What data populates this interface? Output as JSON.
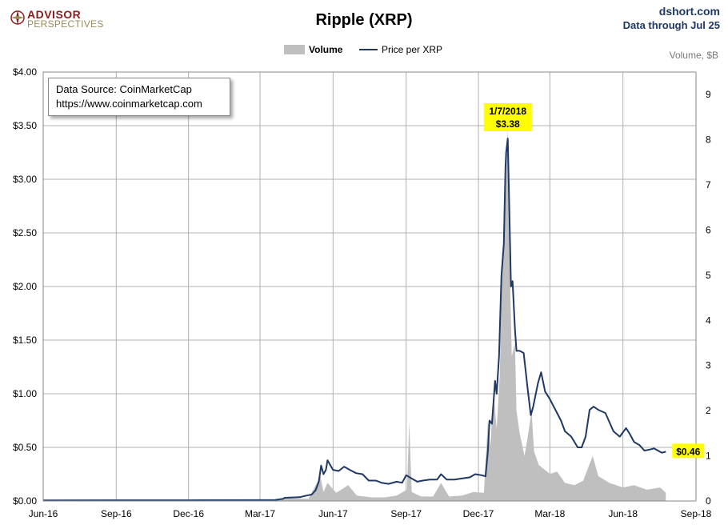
{
  "logo": {
    "line1": "ADVISOR",
    "line2": "PERSPECTIVES"
  },
  "header": {
    "site": "dshort.com",
    "data_through": "Data through Jul 25"
  },
  "source_box": {
    "line1": "Data Source: CoinMarketCap",
    "line2": "https://www.coinmarketcap.com"
  },
  "colors": {
    "price": "#1f3864",
    "volume": "#bfbfbf",
    "grid": "#b0b0b0",
    "callout": "#ffff00"
  },
  "chart_data": {
    "type": "line",
    "title": "Ripple (XRP)",
    "y_right_label": "Volume, $B",
    "legend": {
      "placement": "top-center",
      "entries": [
        "Volume",
        "Price per XRP"
      ]
    },
    "x_ticks": [
      "Jun-16",
      "Sep-16",
      "Dec-16",
      "Mar-17",
      "Jun-17",
      "Sep-17",
      "Dec-17",
      "Mar-18",
      "Jun-18",
      "Sep-18"
    ],
    "x_range": [
      "2016-06-01",
      "2018-09-01"
    ],
    "y_ticks_left": [
      "$0.00",
      "$0.50",
      "$1.00",
      "$1.50",
      "$2.00",
      "$2.50",
      "$3.00",
      "$3.50",
      "$4.00"
    ],
    "ylim_left": [
      0,
      4
    ],
    "y_ticks_right": [
      "0",
      "1",
      "2",
      "3",
      "4",
      "5",
      "6",
      "7",
      "8",
      "9"
    ],
    "ylim_right": [
      0,
      9.5
    ],
    "grid": true,
    "annotations": {
      "peak_date": "1/7/2018",
      "peak_price": "$3.38",
      "peak_x": "2018-01-07",
      "peak_y": 3.38,
      "last_price": "$0.46",
      "last_x": "2018-07-25",
      "last_y": 0.46
    },
    "series": [
      {
        "name": "Price per XRP",
        "points": [
          [
            "2016-06-01",
            0.006
          ],
          [
            "2016-09-01",
            0.007
          ],
          [
            "2016-12-01",
            0.007
          ],
          [
            "2017-03-01",
            0.008
          ],
          [
            "2017-03-20",
            0.009
          ],
          [
            "2017-03-30",
            0.02
          ],
          [
            "2017-04-01",
            0.03
          ],
          [
            "2017-04-20",
            0.035
          ],
          [
            "2017-04-28",
            0.05
          ],
          [
            "2017-05-05",
            0.06
          ],
          [
            "2017-05-10",
            0.1
          ],
          [
            "2017-05-14",
            0.18
          ],
          [
            "2017-05-17",
            0.33
          ],
          [
            "2017-05-20",
            0.25
          ],
          [
            "2017-05-23",
            0.29
          ],
          [
            "2017-05-25",
            0.38
          ],
          [
            "2017-05-28",
            0.34
          ],
          [
            "2017-06-01",
            0.29
          ],
          [
            "2017-06-08",
            0.28
          ],
          [
            "2017-06-15",
            0.32
          ],
          [
            "2017-06-22",
            0.29
          ],
          [
            "2017-06-30",
            0.26
          ],
          [
            "2017-07-08",
            0.25
          ],
          [
            "2017-07-16",
            0.19
          ],
          [
            "2017-07-25",
            0.19
          ],
          [
            "2017-08-01",
            0.17
          ],
          [
            "2017-08-10",
            0.16
          ],
          [
            "2017-08-20",
            0.18
          ],
          [
            "2017-08-27",
            0.17
          ],
          [
            "2017-09-01",
            0.24
          ],
          [
            "2017-09-08",
            0.21
          ],
          [
            "2017-09-15",
            0.18
          ],
          [
            "2017-09-22",
            0.19
          ],
          [
            "2017-10-01",
            0.2
          ],
          [
            "2017-10-10",
            0.2
          ],
          [
            "2017-10-15",
            0.25
          ],
          [
            "2017-10-22",
            0.2
          ],
          [
            "2017-11-01",
            0.2
          ],
          [
            "2017-11-10",
            0.21
          ],
          [
            "2017-11-20",
            0.22
          ],
          [
            "2017-11-27",
            0.25
          ],
          [
            "2017-12-05",
            0.24
          ],
          [
            "2017-12-10",
            0.23
          ],
          [
            "2017-12-13",
            0.47
          ],
          [
            "2017-12-15",
            0.75
          ],
          [
            "2017-12-18",
            0.72
          ],
          [
            "2017-12-20",
            0.92
          ],
          [
            "2017-12-22",
            1.12
          ],
          [
            "2017-12-24",
            1.0
          ],
          [
            "2017-12-27",
            1.35
          ],
          [
            "2017-12-30",
            2.1
          ],
          [
            "2018-01-02",
            2.4
          ],
          [
            "2018-01-04",
            3.1
          ],
          [
            "2018-01-05",
            3.25
          ],
          [
            "2018-01-07",
            3.38
          ],
          [
            "2018-01-09",
            2.7
          ],
          [
            "2018-01-11",
            2.0
          ],
          [
            "2018-01-13",
            2.05
          ],
          [
            "2018-01-16",
            1.6
          ],
          [
            "2018-01-18",
            1.4
          ],
          [
            "2018-01-22",
            1.4
          ],
          [
            "2018-01-27",
            1.38
          ],
          [
            "2018-02-01",
            1.05
          ],
          [
            "2018-02-05",
            0.8
          ],
          [
            "2018-02-08",
            0.88
          ],
          [
            "2018-02-14",
            1.1
          ],
          [
            "2018-02-18",
            1.2
          ],
          [
            "2018-02-23",
            1.02
          ],
          [
            "2018-03-01",
            0.95
          ],
          [
            "2018-03-08",
            0.85
          ],
          [
            "2018-03-15",
            0.75
          ],
          [
            "2018-03-20",
            0.65
          ],
          [
            "2018-03-28",
            0.6
          ],
          [
            "2018-04-05",
            0.5
          ],
          [
            "2018-04-10",
            0.5
          ],
          [
            "2018-04-15",
            0.6
          ],
          [
            "2018-04-20",
            0.85
          ],
          [
            "2018-04-25",
            0.88
          ],
          [
            "2018-05-01",
            0.85
          ],
          [
            "2018-05-10",
            0.82
          ],
          [
            "2018-05-20",
            0.65
          ],
          [
            "2018-05-28",
            0.6
          ],
          [
            "2018-06-05",
            0.68
          ],
          [
            "2018-06-10",
            0.62
          ],
          [
            "2018-06-15",
            0.55
          ],
          [
            "2018-06-22",
            0.52
          ],
          [
            "2018-06-28",
            0.47
          ],
          [
            "2018-07-05",
            0.48
          ],
          [
            "2018-07-10",
            0.49
          ],
          [
            "2018-07-15",
            0.47
          ],
          [
            "2018-07-20",
            0.45
          ],
          [
            "2018-07-25",
            0.46
          ]
        ]
      },
      {
        "name": "Volume",
        "points": [
          [
            "2016-06-01",
            0.0
          ],
          [
            "2017-03-15",
            0.0
          ],
          [
            "2017-04-05",
            0.06
          ],
          [
            "2017-05-01",
            0.05
          ],
          [
            "2017-05-16",
            0.55
          ],
          [
            "2017-05-20",
            0.2
          ],
          [
            "2017-05-25",
            0.4
          ],
          [
            "2017-06-05",
            0.18
          ],
          [
            "2017-06-20",
            0.35
          ],
          [
            "2017-07-01",
            0.12
          ],
          [
            "2017-07-20",
            0.08
          ],
          [
            "2017-08-05",
            0.08
          ],
          [
            "2017-08-20",
            0.12
          ],
          [
            "2017-09-02",
            0.25
          ],
          [
            "2017-09-05",
            1.75
          ],
          [
            "2017-09-08",
            0.2
          ],
          [
            "2017-09-20",
            0.1
          ],
          [
            "2017-10-05",
            0.1
          ],
          [
            "2017-10-15",
            0.4
          ],
          [
            "2017-10-25",
            0.1
          ],
          [
            "2017-11-10",
            0.12
          ],
          [
            "2017-11-25",
            0.2
          ],
          [
            "2017-12-08",
            0.18
          ],
          [
            "2017-12-13",
            1.8
          ],
          [
            "2017-12-16",
            1.2
          ],
          [
            "2017-12-20",
            2.4
          ],
          [
            "2017-12-24",
            1.6
          ],
          [
            "2017-12-28",
            2.8
          ],
          [
            "2017-12-31",
            5.5
          ],
          [
            "2018-01-03",
            6.0
          ],
          [
            "2018-01-05",
            7.2
          ],
          [
            "2018-01-07",
            8.3
          ],
          [
            "2018-01-09",
            5.6
          ],
          [
            "2018-01-12",
            3.2
          ],
          [
            "2018-01-16",
            3.5
          ],
          [
            "2018-01-18",
            2.0
          ],
          [
            "2018-01-22",
            1.5
          ],
          [
            "2018-01-28",
            1.0
          ],
          [
            "2018-02-01",
            1.4
          ],
          [
            "2018-02-06",
            2.0
          ],
          [
            "2018-02-09",
            1.1
          ],
          [
            "2018-02-15",
            0.8
          ],
          [
            "2018-03-01",
            0.6
          ],
          [
            "2018-03-10",
            0.65
          ],
          [
            "2018-03-20",
            0.4
          ],
          [
            "2018-04-01",
            0.35
          ],
          [
            "2018-04-12",
            0.45
          ],
          [
            "2018-04-24",
            1.0
          ],
          [
            "2018-05-01",
            0.55
          ],
          [
            "2018-05-15",
            0.4
          ],
          [
            "2018-06-01",
            0.3
          ],
          [
            "2018-06-15",
            0.35
          ],
          [
            "2018-07-01",
            0.25
          ],
          [
            "2018-07-18",
            0.3
          ],
          [
            "2018-07-25",
            0.18
          ]
        ]
      }
    ]
  }
}
